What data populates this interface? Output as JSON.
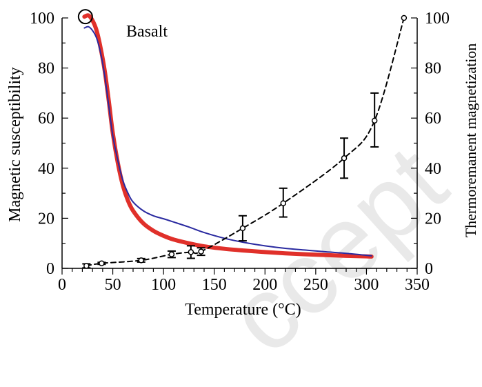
{
  "chart_data": {
    "type": "line",
    "annotation": "Basalt",
    "watermark": "ccept",
    "xlabel": "Temperature (°C)",
    "ylabel_left": "Magnetic susceptibility",
    "ylabel_right": "Thermoremanent magnetization",
    "xlim": [
      0,
      350
    ],
    "ylim_left": [
      0,
      100
    ],
    "ylim_right": [
      0,
      100
    ],
    "x_ticks": [
      0,
      50,
      100,
      150,
      200,
      250,
      300,
      350
    ],
    "y_ticks_left": [
      0,
      20,
      40,
      60,
      80,
      100
    ],
    "y_ticks_right": [
      0,
      20,
      40,
      60,
      80,
      100
    ],
    "grid": false,
    "series": [
      {
        "style": "solid-thick",
        "color": "#e0302a",
        "x": [
          22,
          26,
          30,
          34,
          38,
          42,
          46,
          50,
          55,
          60,
          65,
          70,
          80,
          90,
          100,
          110,
          125,
          140,
          160,
          180,
          200,
          220,
          240,
          260,
          280,
          300,
          305
        ],
        "y": [
          100.5,
          101,
          99,
          95,
          88,
          79,
          67,
          54,
          42,
          33,
          27,
          23,
          18,
          15,
          13,
          11.5,
          10,
          8.8,
          7.8,
          7.1,
          6.5,
          6.0,
          5.6,
          5.3,
          5.0,
          4.8,
          4.7
        ]
      },
      {
        "style": "solid-thin",
        "color": "#2a2aa0",
        "x": [
          22,
          26,
          30,
          34,
          38,
          42,
          46,
          50,
          55,
          60,
          65,
          70,
          80,
          90,
          100,
          110,
          125,
          140,
          160,
          180,
          200,
          220,
          240,
          260,
          280,
          300,
          305
        ],
        "y": [
          96,
          96.5,
          95,
          92,
          86,
          77,
          65,
          53,
          43,
          35,
          30,
          26.5,
          23,
          21,
          19.8,
          18.5,
          16.5,
          14.3,
          12,
          10.3,
          9.0,
          8.0,
          7.3,
          6.6,
          6.0,
          5.2,
          5.0
        ]
      },
      {
        "style": "dashed-markers",
        "color": "#000000",
        "axis": "right",
        "x": [
          24,
          39,
          78,
          108,
          127,
          137,
          178,
          218,
          278,
          308,
          337
        ],
        "y": [
          1,
          2,
          3.2,
          5.6,
          6.5,
          6.7,
          16,
          26,
          44,
          59,
          100
        ],
        "err_low": [
          0.8,
          0.4,
          0.7,
          1.3,
          2.5,
          1.5,
          5,
          5.5,
          8,
          10.5,
          0
        ],
        "err_high": [
          0.8,
          0.4,
          0.7,
          1.3,
          2.5,
          1.5,
          5,
          6,
          8,
          11,
          0
        ]
      }
    ],
    "highlight": {
      "x": 23,
      "y": 100.5
    }
  }
}
